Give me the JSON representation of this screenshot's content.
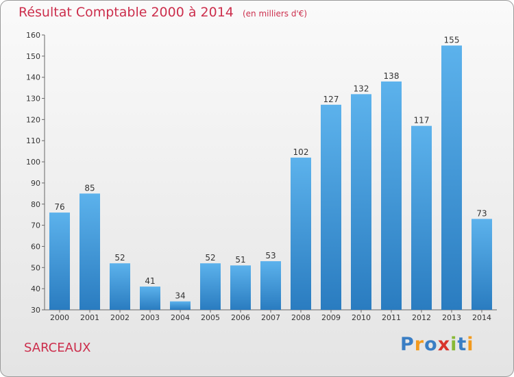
{
  "title": "Résultat Comptable 2000 à 2014",
  "subtitle": "(en milliers d'€)",
  "city": "SARCEAUX",
  "logo": {
    "text": "Proxiti",
    "letters": [
      {
        "ch": "P",
        "color": "#3a7ec4"
      },
      {
        "ch": "r",
        "color": "#f29a1e"
      },
      {
        "ch": "o",
        "color": "#3a7ec4"
      },
      {
        "ch": "x",
        "color": "#d8342c"
      },
      {
        "ch": "i",
        "color": "#88b934"
      },
      {
        "ch": "t",
        "color": "#3a7ec4"
      },
      {
        "ch": "i",
        "color": "#f29a1e"
      }
    ]
  },
  "colors": {
    "title": "#cc2e4c",
    "bar_top": "#5cb2ec",
    "bar_bottom": "#2a7cc0"
  },
  "chart_data": {
    "type": "bar",
    "title": "Résultat Comptable 2000 à 2014",
    "subtitle": "(en milliers d'€)",
    "xlabel": "",
    "ylabel": "",
    "categories": [
      "2000",
      "2001",
      "2002",
      "2003",
      "2004",
      "2005",
      "2006",
      "2007",
      "2008",
      "2009",
      "2010",
      "2011",
      "2012",
      "2013",
      "2014"
    ],
    "values": [
      76,
      85,
      52,
      41,
      34,
      52,
      51,
      53,
      102,
      127,
      132,
      138,
      117,
      155,
      73
    ],
    "ylim": [
      30,
      160
    ],
    "yticks": [
      30,
      40,
      50,
      60,
      70,
      80,
      90,
      100,
      110,
      120,
      130,
      140,
      150,
      160
    ],
    "grid": false,
    "legend": "none"
  }
}
